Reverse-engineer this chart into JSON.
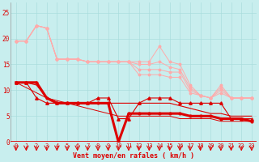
{
  "xlabel": "Vent moyen/en rafales ( km/h )",
  "x": [
    0,
    1,
    2,
    3,
    4,
    5,
    6,
    7,
    8,
    9,
    10,
    11,
    12,
    13,
    14,
    15,
    16,
    17,
    18,
    19,
    20,
    21,
    22,
    23
  ],
  "line_pink1": [
    19.5,
    19.5,
    22.5,
    22.0,
    16.0,
    16.0,
    16.0,
    15.5,
    15.5,
    15.5,
    15.5,
    15.5,
    15.5,
    15.5,
    18.5,
    15.5,
    15.0,
    11.0,
    9.0,
    8.5,
    11.0,
    8.5,
    8.5,
    8.5
  ],
  "line_pink2": [
    19.5,
    19.5,
    22.5,
    22.0,
    16.0,
    16.0,
    16.0,
    15.5,
    15.5,
    15.5,
    15.5,
    15.5,
    15.0,
    15.0,
    15.5,
    14.5,
    14.0,
    10.5,
    9.0,
    8.5,
    10.5,
    8.5,
    8.5,
    8.5
  ],
  "line_pink3": [
    19.5,
    19.5,
    22.5,
    22.0,
    16.0,
    16.0,
    16.0,
    15.5,
    15.5,
    15.5,
    15.5,
    15.5,
    14.0,
    14.0,
    14.0,
    13.5,
    13.5,
    10.0,
    9.0,
    8.5,
    10.0,
    8.5,
    8.5,
    8.5
  ],
  "line_pink4": [
    19.5,
    19.5,
    22.5,
    22.0,
    16.0,
    16.0,
    16.0,
    15.5,
    15.5,
    15.5,
    15.5,
    15.5,
    13.0,
    13.0,
    13.0,
    12.5,
    12.5,
    9.5,
    9.0,
    8.5,
    9.5,
    8.5,
    8.5,
    8.5
  ],
  "line_red_triangle": [
    11.5,
    11.5,
    8.5,
    7.5,
    7.5,
    7.5,
    7.5,
    7.5,
    8.5,
    8.5,
    4.5,
    4.5,
    7.5,
    8.5,
    8.5,
    8.5,
    7.5,
    7.5,
    7.5,
    7.5,
    7.5,
    4.5,
    4.5,
    4.5
  ],
  "line_red_thin_diag": [
    11.5,
    10.5,
    9.5,
    8.5,
    8.0,
    7.5,
    7.0,
    6.5,
    6.0,
    5.5,
    5.0,
    5.0,
    5.0,
    5.0,
    5.0,
    5.0,
    4.5,
    4.5,
    4.5,
    4.5,
    4.0,
    4.0,
    4.0,
    4.0
  ],
  "line_red_thick": [
    11.5,
    11.5,
    11.5,
    8.5,
    7.5,
    7.5,
    7.5,
    7.5,
    7.5,
    7.5,
    0.0,
    5.5,
    5.5,
    5.5,
    5.5,
    5.5,
    5.5,
    5.0,
    5.0,
    5.0,
    4.5,
    4.5,
    4.5,
    4.0
  ],
  "line_red_plain": [
    11.5,
    11.5,
    11.0,
    8.5,
    7.5,
    7.5,
    7.5,
    7.5,
    7.5,
    7.5,
    7.5,
    7.5,
    7.5,
    7.5,
    7.5,
    7.5,
    7.0,
    6.5,
    6.0,
    5.5,
    5.5,
    5.0,
    5.0,
    5.0
  ],
  "arrows_x": [
    0,
    1,
    2,
    3,
    4,
    5,
    6,
    7,
    8,
    9,
    10,
    11,
    12,
    13,
    14,
    15,
    16,
    17,
    18,
    19,
    20,
    21,
    22,
    23
  ],
  "arrow_angles": [
    225,
    225,
    225,
    225,
    225,
    225,
    225,
    225,
    225,
    225,
    270,
    270,
    270,
    270,
    270,
    270,
    225,
    200,
    200,
    200,
    270,
    270,
    270,
    270
  ],
  "bg_color": "#c8eeee",
  "grid_color": "#aadddd",
  "pink_color": "#ffaaaa",
  "red_color": "#dd0000",
  "ylim": [
    0,
    27
  ],
  "yticks": [
    0,
    5,
    10,
    15,
    20,
    25
  ],
  "xlim": [
    -0.5,
    23.5
  ]
}
